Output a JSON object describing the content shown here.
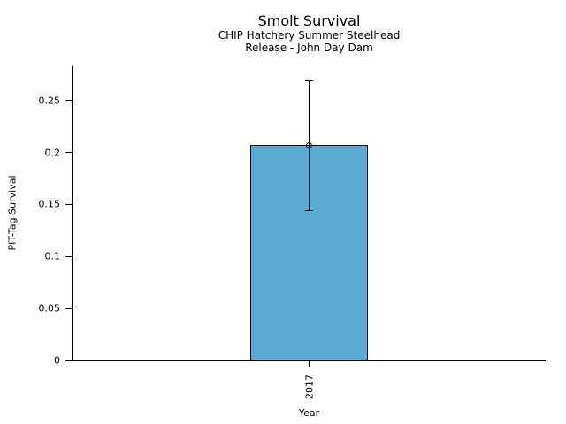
{
  "chart_data": {
    "type": "bar",
    "title": "Smolt Survival",
    "subtitle": [
      "CHIP Hatchery Summer Steelhead",
      "Release - John Day Dam"
    ],
    "xlabel": "Year",
    "ylabel": "PIT-Tag Survival",
    "categories": [
      "2017"
    ],
    "values": [
      0.207
    ],
    "error_bars": [
      {
        "low": 0.144,
        "high": 0.269
      }
    ],
    "ylim": [
      0,
      0.283
    ],
    "yticks": [
      {
        "value": 0,
        "label": "0"
      },
      {
        "value": 0.05,
        "label": "0.05"
      },
      {
        "value": 0.1,
        "label": "0.1"
      },
      {
        "value": 0.15,
        "label": "0.15"
      },
      {
        "value": 0.2,
        "label": "0.2"
      },
      {
        "value": 0.25,
        "label": "0.25"
      }
    ],
    "grid": false,
    "legend": null,
    "bar_width_frac": 0.25,
    "bar_color": "#5AAAD4",
    "bar_edge_color": "#000000",
    "error_color": "#000000",
    "marker": "open-circle"
  }
}
